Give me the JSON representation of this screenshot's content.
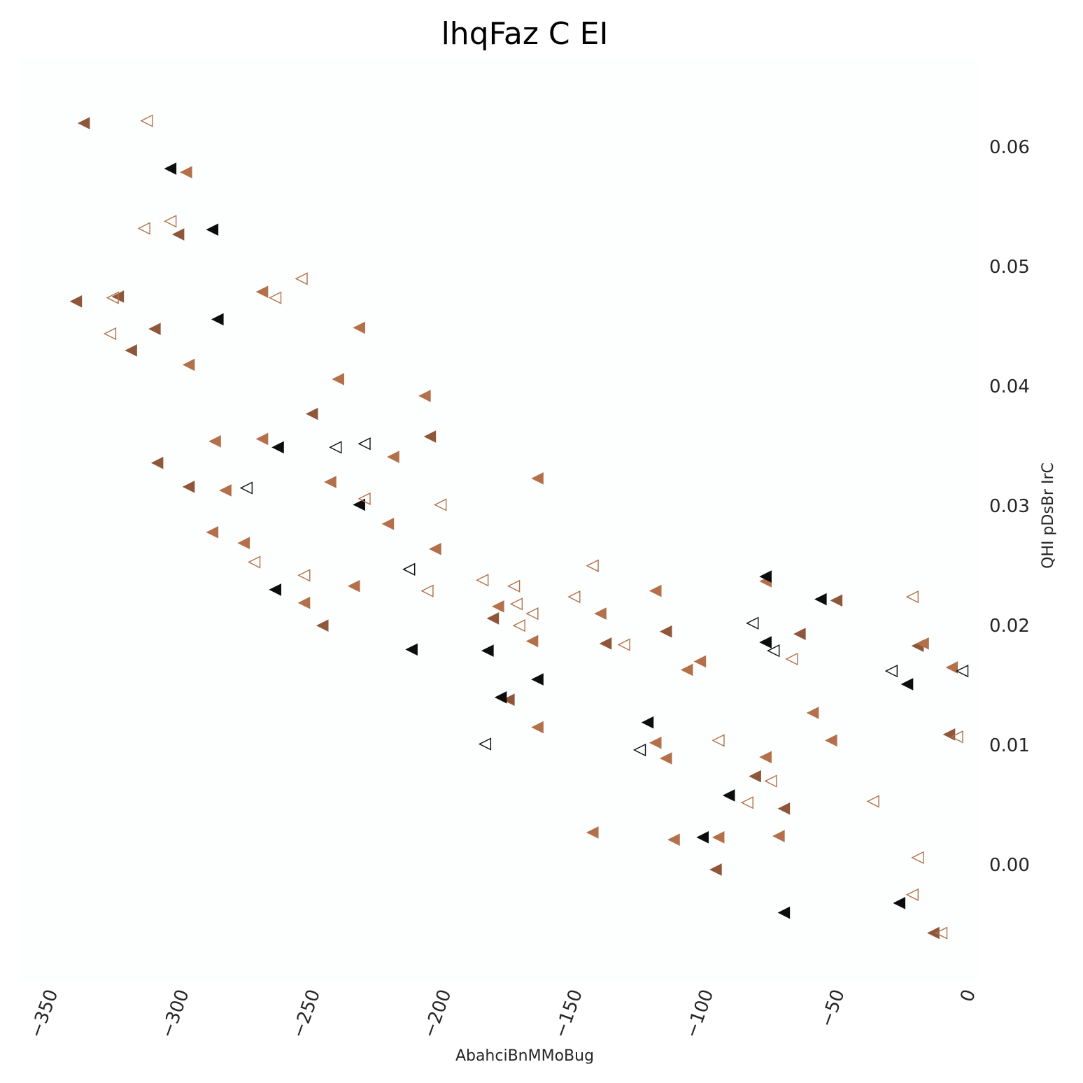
{
  "chart_data": {
    "type": "scatter",
    "title": "lhqFaz C EI",
    "xlabel": "AbahciBnMMoBug",
    "ylabel": "QHI pDsBr IrC",
    "xlim": [
      -360,
      5
    ],
    "ylim": [
      -0.0097,
      0.0675
    ],
    "x_ticks": [
      -350,
      -300,
      -250,
      -200,
      -150,
      -100,
      -50,
      0
    ],
    "x_tick_labels": [
      "−350",
      "−300",
      "−250",
      "−200",
      "−150",
      "−100",
      "−50",
      "0"
    ],
    "y_ticks": [
      0.0,
      0.01,
      0.02,
      0.03,
      0.04,
      0.05,
      0.06
    ],
    "y_tick_labels": [
      "0.00",
      "0.01",
      "0.02",
      "0.03",
      "0.04",
      "0.05",
      "0.06"
    ],
    "y_axis_side": "right",
    "grid": false,
    "legend": false,
    "colors": {
      "background": "#fdfffe",
      "black": "#0d0d0d",
      "dark_brown": "#8f573a",
      "brown": "#b3704a"
    },
    "marker": "triangle-left",
    "series": [
      {
        "color": "#8f573a",
        "filled": true,
        "points": [
          [
            -336,
            0.062
          ],
          [
            -339,
            0.0471
          ],
          [
            -323,
            0.0475
          ],
          [
            -309,
            0.0448
          ],
          [
            -318,
            0.043
          ],
          [
            -300,
            0.0527
          ],
          [
            -308,
            0.0336
          ],
          [
            -296,
            0.0316
          ],
          [
            -249,
            0.0377
          ],
          [
            -204,
            0.0358
          ],
          [
            -245,
            0.02
          ],
          [
            -180,
            0.0206
          ],
          [
            -174,
            0.0138
          ],
          [
            -114,
            0.0195
          ],
          [
            -63,
            0.0193
          ],
          [
            -49,
            0.0221
          ],
          [
            -18,
            0.0183
          ],
          [
            -6,
            0.0109
          ],
          [
            -69,
            0.0047
          ],
          [
            -95,
            -0.0004
          ],
          [
            -137,
            0.0185
          ],
          [
            -12,
            -0.0057
          ],
          [
            -80,
            0.0074
          ]
        ]
      },
      {
        "color": "#b3704a",
        "filled": true,
        "points": [
          [
            -297,
            0.0579
          ],
          [
            -296,
            0.0418
          ],
          [
            -268,
            0.0479
          ],
          [
            -231,
            0.0449
          ],
          [
            -239,
            0.0406
          ],
          [
            -206,
            0.0392
          ],
          [
            -286,
            0.0354
          ],
          [
            -268,
            0.0356
          ],
          [
            -218,
            0.0341
          ],
          [
            -282,
            0.0313
          ],
          [
            -242,
            0.032
          ],
          [
            -163,
            0.0323
          ],
          [
            -287,
            0.0278
          ],
          [
            -275,
            0.0269
          ],
          [
            -220,
            0.0285
          ],
          [
            -202,
            0.0264
          ],
          [
            -252,
            0.0219
          ],
          [
            -233,
            0.0233
          ],
          [
            -178,
            0.0216
          ],
          [
            -165,
            0.0187
          ],
          [
            -139,
            0.021
          ],
          [
            -118,
            0.0229
          ],
          [
            -163,
            0.0115
          ],
          [
            -106,
            0.0163
          ],
          [
            -101,
            0.017
          ],
          [
            -118,
            0.0102
          ],
          [
            -114,
            0.0089
          ],
          [
            -76,
            0.0237
          ],
          [
            -76,
            0.009
          ],
          [
            -58,
            0.0127
          ],
          [
            -51,
            0.0104
          ],
          [
            -5,
            0.0165
          ],
          [
            -16,
            0.0185
          ],
          [
            -142,
            0.0027
          ],
          [
            -111,
            0.0021
          ],
          [
            -94,
            0.0023
          ],
          [
            -71,
            0.0024
          ]
        ]
      },
      {
        "color": "#0d0d0d",
        "filled": true,
        "points": [
          [
            -303,
            0.0582
          ],
          [
            -287,
            0.0531
          ],
          [
            -285,
            0.0456
          ],
          [
            -262,
            0.0349
          ],
          [
            -231,
            0.0301
          ],
          [
            -263,
            0.023
          ],
          [
            -211,
            0.018
          ],
          [
            -182,
            0.0179
          ],
          [
            -177,
            0.014
          ],
          [
            -163,
            0.0155
          ],
          [
            -121,
            0.0119
          ],
          [
            -76,
            0.0241
          ],
          [
            -76,
            0.0186
          ],
          [
            -55,
            0.0222
          ],
          [
            -22,
            0.0151
          ],
          [
            -90,
            0.0058
          ],
          [
            -100,
            0.0023
          ],
          [
            -69,
            -0.004
          ],
          [
            -25,
            -0.0032
          ]
        ]
      },
      {
        "color": "#b3704a",
        "filled": false,
        "points": [
          [
            -312,
            0.0622
          ],
          [
            -303,
            0.0538
          ],
          [
            -313,
            0.0532
          ],
          [
            -253,
            0.049
          ],
          [
            -325,
            0.0474
          ],
          [
            -263,
            0.0474
          ],
          [
            -326,
            0.0444
          ],
          [
            -229,
            0.0306
          ],
          [
            -200,
            0.0301
          ],
          [
            -271,
            0.0253
          ],
          [
            -252,
            0.0242
          ],
          [
            -205,
            0.0229
          ],
          [
            -184,
            0.0238
          ],
          [
            -172,
            0.0233
          ],
          [
            -171,
            0.0218
          ],
          [
            -170,
            0.02
          ],
          [
            -165,
            0.021
          ],
          [
            -149,
            0.0224
          ],
          [
            -142,
            0.025
          ],
          [
            -130,
            0.0184
          ],
          [
            -94,
            0.0104
          ],
          [
            -66,
            0.0172
          ],
          [
            -74,
            0.007
          ],
          [
            -83,
            0.0052
          ],
          [
            -35,
            0.0053
          ],
          [
            -20,
            0.0224
          ],
          [
            -3,
            0.0107
          ],
          [
            -18,
            0.0006
          ],
          [
            -20,
            -0.0025
          ],
          [
            -9,
            -0.0057
          ]
        ]
      },
      {
        "color": "#0d0d0d",
        "filled": false,
        "points": [
          [
            -274,
            0.0315
          ],
          [
            -240,
            0.0349
          ],
          [
            -229,
            0.0352
          ],
          [
            -212,
            0.0247
          ],
          [
            -183,
            0.0101
          ],
          [
            -124,
            0.0096
          ],
          [
            -81,
            0.0202
          ],
          [
            -73,
            0.0179
          ],
          [
            -28,
            0.0162
          ],
          [
            -1,
            0.0162
          ]
        ]
      }
    ]
  }
}
